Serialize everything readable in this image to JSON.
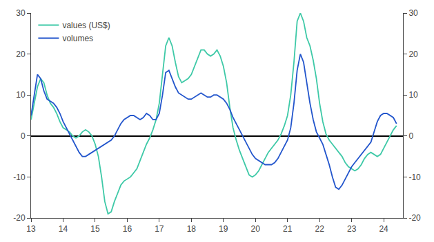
{
  "chart_data": {
    "type": "line",
    "x": [
      13.0,
      13.1,
      13.2,
      13.3,
      13.4,
      13.5,
      13.6,
      13.7,
      13.8,
      13.9,
      14.0,
      14.1,
      14.2,
      14.3,
      14.4,
      14.5,
      14.6,
      14.7,
      14.8,
      14.9,
      15.0,
      15.1,
      15.2,
      15.3,
      15.4,
      15.5,
      15.6,
      15.7,
      15.8,
      15.9,
      16.0,
      16.1,
      16.2,
      16.3,
      16.4,
      16.5,
      16.6,
      16.7,
      16.8,
      16.9,
      17.0,
      17.1,
      17.2,
      17.3,
      17.4,
      17.5,
      17.6,
      17.7,
      17.8,
      17.9,
      18.0,
      18.1,
      18.2,
      18.3,
      18.4,
      18.5,
      18.6,
      18.7,
      18.8,
      18.9,
      19.0,
      19.1,
      19.2,
      19.3,
      19.4,
      19.5,
      19.6,
      19.7,
      19.8,
      19.9,
      20.0,
      20.1,
      20.2,
      20.3,
      20.4,
      20.5,
      20.6,
      20.7,
      20.8,
      20.9,
      21.0,
      21.1,
      21.2,
      21.3,
      21.4,
      21.5,
      21.6,
      21.7,
      21.8,
      21.9,
      22.0,
      22.1,
      22.2,
      22.3,
      22.4,
      22.5,
      22.6,
      22.7,
      22.8,
      22.9,
      23.0,
      23.1,
      23.2,
      23.3,
      23.4,
      23.5,
      23.6,
      23.7,
      23.8,
      23.9,
      24.0,
      24.1,
      24.2,
      24.3,
      24.4
    ],
    "series": [
      {
        "name": "values (US$)",
        "color": "#3EC9A7",
        "values": [
          4.0,
          8.0,
          12.0,
          14.0,
          13.0,
          10.0,
          8.0,
          7.0,
          5.5,
          3.5,
          2.0,
          1.5,
          1.0,
          0.0,
          -0.5,
          0.0,
          1.0,
          1.5,
          1.0,
          0.0,
          -2.0,
          -5.0,
          -10.0,
          -16.0,
          -19.0,
          -18.5,
          -16.0,
          -14.0,
          -12.0,
          -11.0,
          -10.5,
          -10.0,
          -9.0,
          -8.0,
          -6.0,
          -4.0,
          -2.0,
          -0.5,
          1.5,
          4.0,
          8.0,
          15.0,
          22.0,
          24.0,
          22.0,
          18.0,
          14.5,
          13.0,
          13.5,
          14.0,
          15.0,
          17.0,
          19.0,
          21.0,
          21.0,
          20.0,
          19.5,
          20.0,
          21.0,
          19.5,
          17.0,
          13.0,
          7.0,
          2.0,
          -1.0,
          -3.5,
          -5.5,
          -7.5,
          -9.5,
          -10.0,
          -9.5,
          -8.5,
          -7.0,
          -5.5,
          -4.0,
          -3.0,
          -2.0,
          -1.0,
          0.5,
          2.5,
          5.0,
          10.0,
          18.0,
          28.0,
          30.0,
          28.0,
          24.0,
          22.0,
          18.5,
          14.0,
          8.0,
          3.5,
          0.5,
          -1.0,
          -2.0,
          -3.0,
          -4.0,
          -5.0,
          -6.5,
          -7.5,
          -8.0,
          -8.5,
          -8.0,
          -7.0,
          -5.5,
          -4.5,
          -4.0,
          -4.5,
          -5.0,
          -4.5,
          -3.0,
          -1.5,
          0.0,
          1.5,
          2.5
        ]
      },
      {
        "name": "volumes",
        "color": "#2255CC",
        "axis": "y2",
        "values": [
          5.0,
          10.0,
          15.0,
          14.0,
          11.0,
          9.0,
          8.5,
          8.0,
          7.0,
          5.5,
          3.5,
          2.0,
          0.5,
          -1.0,
          -2.5,
          -4.0,
          -5.0,
          -5.0,
          -4.5,
          -4.0,
          -3.5,
          -3.0,
          -2.5,
          -2.0,
          -1.5,
          -1.0,
          0.0,
          1.5,
          3.0,
          4.0,
          4.5,
          5.0,
          5.0,
          4.5,
          4.0,
          4.5,
          5.5,
          5.0,
          4.0,
          4.0,
          5.5,
          10.0,
          15.5,
          16.0,
          14.0,
          12.0,
          10.5,
          10.0,
          9.5,
          9.0,
          9.0,
          9.5,
          10.0,
          10.5,
          10.0,
          9.5,
          9.5,
          10.0,
          10.0,
          9.5,
          9.0,
          8.0,
          6.5,
          4.5,
          3.0,
          1.5,
          0.0,
          -1.5,
          -3.0,
          -4.5,
          -5.5,
          -6.0,
          -6.5,
          -7.0,
          -7.0,
          -7.0,
          -6.5,
          -5.5,
          -4.0,
          -2.5,
          -1.0,
          2.0,
          8.0,
          16.0,
          20.0,
          18.0,
          13.0,
          8.0,
          4.0,
          1.0,
          -0.5,
          -2.0,
          -4.5,
          -7.0,
          -10.0,
          -12.5,
          -13.0,
          -12.0,
          -10.5,
          -9.0,
          -7.5,
          -6.5,
          -5.5,
          -4.5,
          -3.5,
          -2.5,
          -1.5,
          1.0,
          3.5,
          5.0,
          5.5,
          5.5,
          5.0,
          4.5,
          3.0
        ]
      }
    ],
    "xlim": [
      13,
      24.6
    ],
    "xticks": [
      13,
      14,
      15,
      16,
      17,
      18,
      19,
      20,
      21,
      22,
      23,
      24
    ],
    "ylim": [
      -20,
      30
    ],
    "yticks": [
      -20,
      -10,
      0,
      10,
      20,
      30
    ],
    "y2lim": [
      -20,
      30
    ],
    "y2ticks": [
      -20,
      -10,
      0,
      10,
      20,
      30
    ],
    "legend": "upper left",
    "grid": false
  }
}
